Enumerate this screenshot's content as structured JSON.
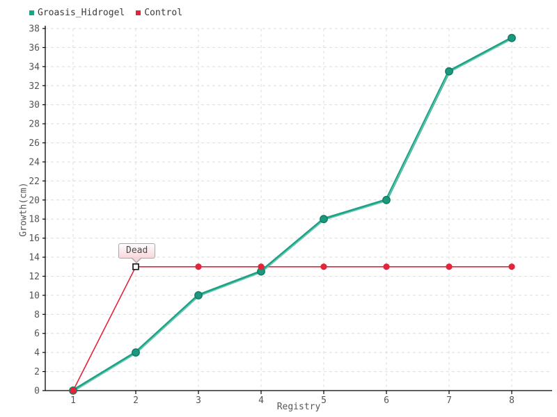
{
  "chart_data": {
    "type": "line",
    "x": [
      1,
      2,
      3,
      4,
      5,
      6,
      7,
      8
    ],
    "xlim": [
      1,
      8
    ],
    "ylim": [
      0,
      38
    ],
    "ytick_step": 2,
    "grid": true,
    "legend_position": "top-left",
    "xlabel": "Registry",
    "ylabel": "Growth(cm)",
    "series": [
      {
        "name": "Groasis_Hidrogel",
        "color": "#1ca287",
        "marker": "circle",
        "values": [
          0,
          4,
          10,
          12.5,
          18,
          20,
          33.5,
          37
        ]
      },
      {
        "name": "Control",
        "color": "#e3243a",
        "marker": "circle",
        "values": [
          0,
          13,
          13,
          13,
          13,
          13,
          13,
          13
        ]
      }
    ],
    "annotation": {
      "text": "Dead",
      "series": "Control",
      "x": 2,
      "y": 13,
      "marker": "open-square"
    },
    "colors": {
      "axis": "#000000",
      "grid": "#dcdcdc",
      "tick_text": "#545454",
      "tooltip_border": "#a8a8a8",
      "tooltip_bg_top": "#fffcfc",
      "tooltip_bg_bottom": "#f8d8dc"
    }
  }
}
